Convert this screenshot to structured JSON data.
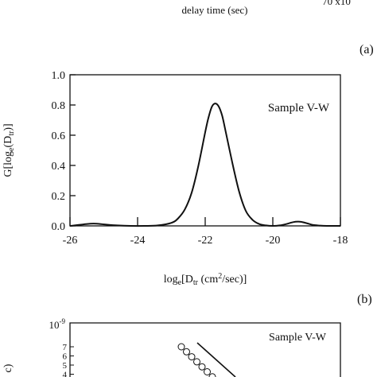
{
  "top_fragment": {
    "xlabel": "delay time (sec)",
    "tick_fragment": "70 x10"
  },
  "panel_a": {
    "panel_label": "(a)"
  },
  "panel_b": {
    "panel_label": "(b)"
  },
  "panel_c": {
    "panel_label": "c)",
    "annotation": "Sample V-W"
  },
  "chart_data": [
    {
      "type": "line",
      "title": "",
      "annotation": "Sample V-W",
      "xlabel": "log_e[D_tr (cm^2/sec)]",
      "ylabel": "G[log_e(D_tr)]",
      "xlim": [
        -26,
        -18
      ],
      "ylim": [
        0,
        1.0
      ],
      "xticks": [
        "-26",
        "-24",
        "-22",
        "-20",
        "-18"
      ],
      "yticks": [
        "0.0",
        "0.2",
        "0.4",
        "0.6",
        "0.8",
        "1.0"
      ],
      "grid": false,
      "series": [
        {
          "x": [
            -26.0,
            -25.6,
            -25.3,
            -25.0,
            -24.6,
            -24.2,
            -23.8,
            -23.4,
            -23.0,
            -22.8,
            -22.6,
            -22.4,
            -22.2,
            -22.0,
            -21.9,
            -21.8,
            -21.7,
            -21.6,
            -21.5,
            -21.4,
            -21.2,
            -21.0,
            -20.8,
            -20.6,
            -20.4,
            -20.2,
            -20.0,
            -19.8,
            -19.6,
            -19.4,
            -19.2,
            -19.0,
            -18.8,
            -18.6,
            -18.4,
            -18.0
          ],
          "y": [
            0.0,
            0.01,
            0.015,
            0.01,
            0.003,
            0.0,
            0.0,
            0.003,
            0.02,
            0.05,
            0.11,
            0.22,
            0.4,
            0.62,
            0.72,
            0.79,
            0.81,
            0.79,
            0.73,
            0.63,
            0.42,
            0.23,
            0.1,
            0.04,
            0.012,
            0.003,
            0.0,
            0.003,
            0.012,
            0.025,
            0.028,
            0.018,
            0.006,
            0.002,
            0.0,
            0.0
          ]
        }
      ]
    },
    {
      "type": "scatter",
      "title": "",
      "annotation": "Sample V-W",
      "yticks": [
        "10^-9",
        "7",
        "6",
        "5",
        "4"
      ],
      "series": [
        {
          "marker": "circle",
          "x": [
            1,
            2,
            3,
            4,
            5,
            6,
            7,
            8,
            9
          ],
          "y": [
            7.2,
            6.8,
            6.4,
            6.0,
            5.6,
            5.2,
            4.8,
            4.4,
            4.0
          ]
        }
      ]
    }
  ]
}
